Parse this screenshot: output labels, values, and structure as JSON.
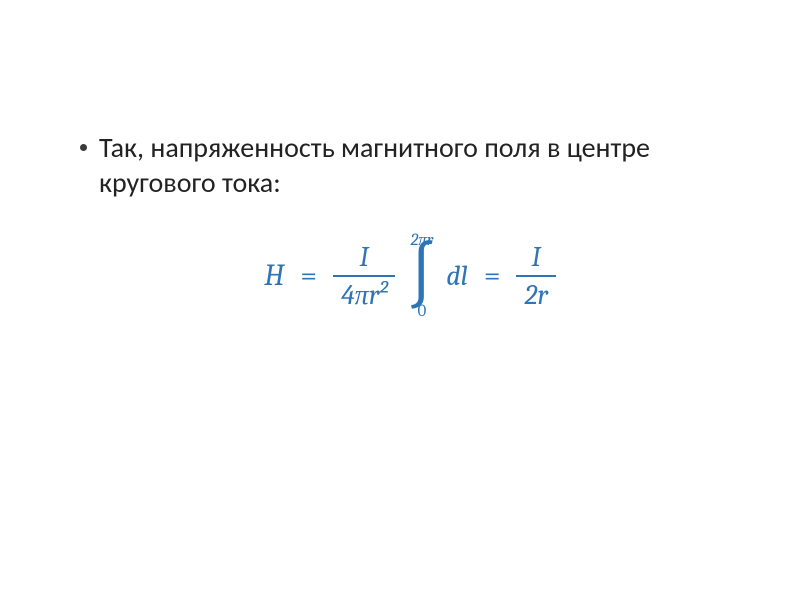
{
  "slide": {
    "bullet_text": "Так, напряженность магнитного поля в центре кругового тока:",
    "text_color": "#222222",
    "bullet_color": "#3a3a3a",
    "background_color": "#ffffff",
    "body_fontsize": 28
  },
  "equation": {
    "color": "#2d75b6",
    "lhs_var": "H",
    "eq1": "=",
    "frac1": {
      "num": "I",
      "den": "4πr²"
    },
    "integral": {
      "upper": "2πr",
      "symbol": "∫",
      "lower": "0",
      "integrand": "dl"
    },
    "eq2": "=",
    "frac2": {
      "num": "I",
      "den": "2r"
    },
    "fontsize": 30,
    "font_family": "Cambria Math"
  }
}
